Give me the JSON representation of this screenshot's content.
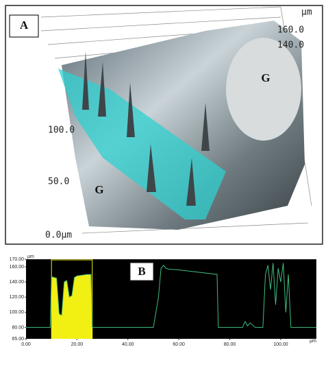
{
  "panel_a": {
    "label": "A",
    "regions": [
      "G",
      "G"
    ],
    "unit": "μm",
    "scale_labels": [
      "160.0",
      "140.0",
      "100.0",
      "50.0",
      "0.0μm"
    ]
  },
  "chart_data": {
    "type": "line",
    "label": "B",
    "x_label": "μm",
    "y_label": "μm",
    "xlim": [
      0,
      114
    ],
    "ylim": [
      65,
      170
    ],
    "xticks": [
      {
        "value": 0,
        "label": "0.00"
      },
      {
        "value": 20,
        "label": "20.00"
      },
      {
        "value": 40,
        "label": "40.00"
      },
      {
        "value": 60,
        "label": "60.00"
      },
      {
        "value": 80,
        "label": "80.00"
      },
      {
        "value": 100,
        "label": "100.00"
      }
    ],
    "yticks": [
      {
        "value": 65,
        "label": "65.00"
      },
      {
        "value": 80,
        "label": "80.00"
      },
      {
        "value": 100,
        "label": "100.00"
      },
      {
        "value": 120,
        "label": "120.00"
      },
      {
        "value": 140,
        "label": "140.00"
      },
      {
        "value": 160,
        "label": "160.00"
      },
      {
        "value": 170,
        "label": "170.00"
      }
    ],
    "selection": {
      "xlim": [
        10,
        26
      ],
      "color": "#f2ef12"
    },
    "series": [
      {
        "color": "#3fbf7f",
        "x": [
          0,
          5,
          9.5,
          10,
          11,
          12,
          13,
          14,
          15,
          16,
          17,
          18,
          19,
          20,
          22,
          24,
          25.5,
          26,
          30,
          40,
          50,
          52,
          53,
          54,
          55,
          56,
          60,
          70,
          75,
          75.5,
          80,
          85,
          86,
          87,
          88,
          90,
          93,
          94,
          95,
          96,
          97,
          98,
          99,
          100,
          101,
          102,
          103,
          104,
          105,
          110,
          114
        ],
        "values": [
          80,
          80,
          80,
          147,
          146,
          145,
          98,
          96,
          140,
          142,
          120,
          122,
          146,
          148,
          149,
          150,
          150,
          80,
          80,
          80,
          80,
          120,
          158,
          162,
          158,
          157,
          156,
          152,
          150,
          80,
          80,
          80,
          88,
          82,
          86,
          80,
          80,
          150,
          162,
          130,
          165,
          110,
          158,
          140,
          165,
          100,
          150,
          80,
          80,
          80,
          80
        ]
      }
    ]
  }
}
